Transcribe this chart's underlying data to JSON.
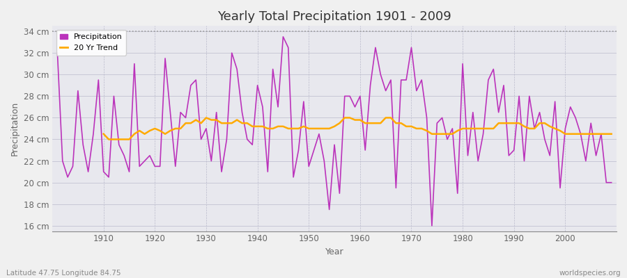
{
  "title": "Yearly Total Precipitation 1901 - 2009",
  "xlabel": "Year",
  "ylabel": "Precipitation",
  "subtitle_left": "Latitude 47.75 Longitude 84.75",
  "subtitle_right": "worldspecies.org",
  "bg_color": "#f0f0f0",
  "plot_bg_color": "#e8e8ee",
  "precip_color": "#bb33bb",
  "trend_color": "#ffaa00",
  "ylim": [
    15.5,
    34.5
  ],
  "yticks": [
    16,
    18,
    20,
    22,
    24,
    26,
    28,
    30,
    32,
    34
  ],
  "xticks": [
    1910,
    1920,
    1930,
    1940,
    1950,
    1960,
    1970,
    1980,
    1990,
    2000
  ],
  "years": [
    1901,
    1902,
    1903,
    1904,
    1905,
    1906,
    1907,
    1908,
    1909,
    1910,
    1911,
    1912,
    1913,
    1914,
    1915,
    1916,
    1917,
    1918,
    1919,
    1920,
    1921,
    1922,
    1923,
    1924,
    1925,
    1926,
    1927,
    1928,
    1929,
    1930,
    1931,
    1932,
    1933,
    1934,
    1935,
    1936,
    1937,
    1938,
    1939,
    1940,
    1941,
    1942,
    1943,
    1944,
    1945,
    1946,
    1947,
    1948,
    1949,
    1950,
    1951,
    1952,
    1953,
    1954,
    1955,
    1956,
    1957,
    1958,
    1959,
    1960,
    1961,
    1962,
    1963,
    1964,
    1965,
    1966,
    1967,
    1968,
    1969,
    1970,
    1971,
    1972,
    1973,
    1974,
    1975,
    1976,
    1977,
    1978,
    1979,
    1980,
    1981,
    1982,
    1983,
    1984,
    1985,
    1986,
    1987,
    1988,
    1989,
    1990,
    1991,
    1992,
    1993,
    1994,
    1995,
    1996,
    1997,
    1998,
    1999,
    2000,
    2001,
    2002,
    2003,
    2004,
    2005,
    2006,
    2007,
    2008,
    2009
  ],
  "precip": [
    32.0,
    22.0,
    20.5,
    21.5,
    28.5,
    23.5,
    21.0,
    24.5,
    29.5,
    21.0,
    20.5,
    28.0,
    23.5,
    22.5,
    21.0,
    31.0,
    21.5,
    22.0,
    22.5,
    21.5,
    21.5,
    31.5,
    26.5,
    21.5,
    26.5,
    26.0,
    29.0,
    29.5,
    24.0,
    25.0,
    22.0,
    26.5,
    21.0,
    24.0,
    32.0,
    30.5,
    26.5,
    24.0,
    23.5,
    29.0,
    27.0,
    21.0,
    30.5,
    27.0,
    33.5,
    32.5,
    20.5,
    23.0,
    27.5,
    21.5,
    23.0,
    24.5,
    22.0,
    17.5,
    23.5,
    19.0,
    28.0,
    28.0,
    27.0,
    28.0,
    23.0,
    29.0,
    32.5,
    30.0,
    28.5,
    29.5,
    19.5,
    29.5,
    29.5,
    32.5,
    28.5,
    29.5,
    26.0,
    16.0,
    25.5,
    26.0,
    24.0,
    25.0,
    19.0,
    31.0,
    22.5,
    26.5,
    22.0,
    24.5,
    29.5,
    30.5,
    26.5,
    29.0,
    22.5,
    23.0,
    28.0,
    22.0,
    28.0,
    25.0,
    26.5,
    24.0,
    22.5,
    27.5,
    19.5,
    25.0,
    27.0,
    26.0,
    24.5,
    22.0,
    25.5,
    22.5,
    24.5,
    20.0,
    20.0
  ],
  "trend": [
    null,
    null,
    null,
    null,
    null,
    null,
    null,
    null,
    null,
    24.5,
    24.0,
    24.0,
    24.0,
    24.0,
    24.0,
    24.5,
    24.8,
    24.5,
    24.8,
    25.0,
    24.8,
    24.5,
    24.8,
    25.0,
    25.0,
    25.5,
    25.5,
    25.8,
    25.5,
    26.0,
    25.8,
    25.8,
    25.5,
    25.5,
    25.5,
    25.8,
    25.5,
    25.5,
    25.2,
    25.2,
    25.2,
    25.0,
    25.0,
    25.2,
    25.2,
    25.0,
    25.0,
    25.0,
    25.2,
    25.0,
    25.0,
    25.0,
    25.0,
    25.0,
    25.2,
    25.5,
    26.0,
    26.0,
    25.8,
    25.8,
    25.5,
    25.5,
    25.5,
    25.5,
    26.0,
    26.0,
    25.5,
    25.5,
    25.2,
    25.2,
    25.0,
    25.0,
    24.8,
    24.5,
    24.5,
    24.5,
    24.5,
    24.5,
    24.8,
    25.0,
    25.0,
    25.0,
    25.0,
    25.0,
    25.0,
    25.0,
    25.5,
    25.5,
    25.5,
    25.5,
    25.5,
    25.2,
    25.0,
    25.0,
    25.5,
    25.5,
    25.2,
    25.0,
    24.8,
    24.5,
    24.5,
    24.5,
    24.5,
    24.5,
    24.5,
    24.5,
    24.5,
    24.5,
    24.5
  ]
}
